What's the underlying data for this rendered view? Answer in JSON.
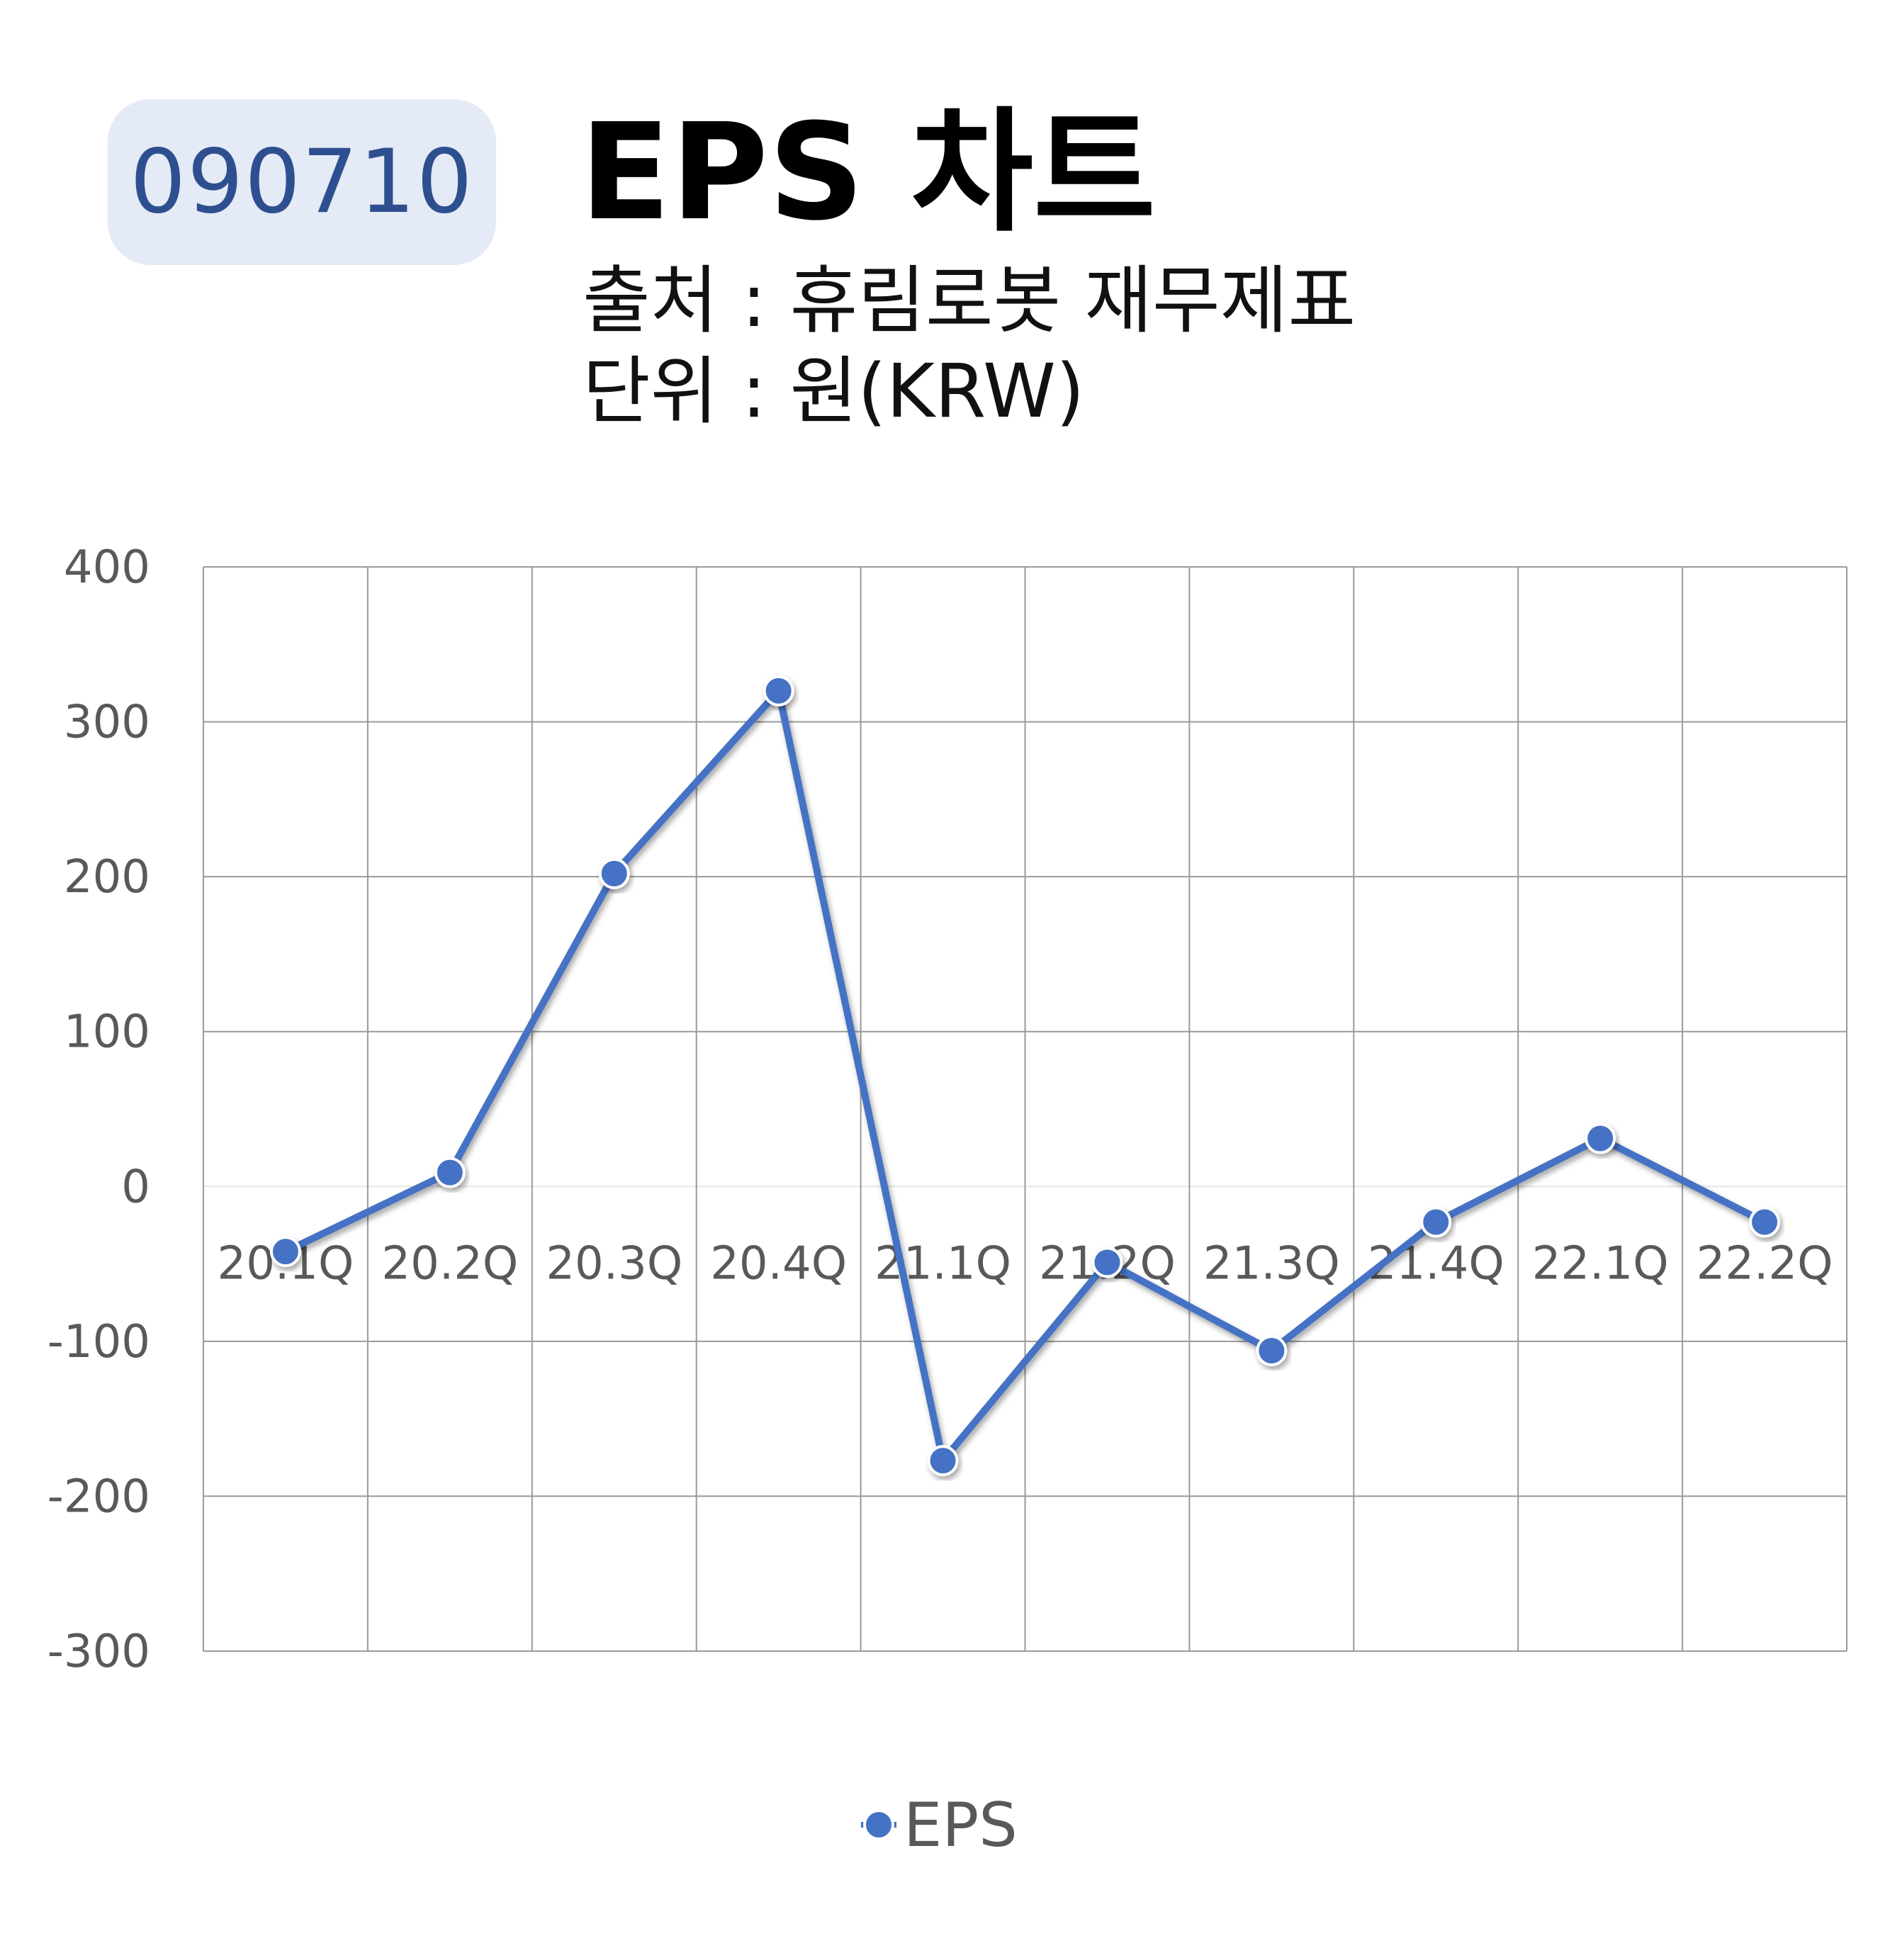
{
  "header": {
    "code": "090710",
    "title": "EPS 차트",
    "source": "출처 : 휴림로봇 재무제표",
    "unit": "단위 : 원(KRW)"
  },
  "chart_data": {
    "type": "line",
    "categories": [
      "20.1Q",
      "20.2Q",
      "20.3Q",
      "20.4Q",
      "21.1Q",
      "21.2Q",
      "21.3Q",
      "21.4Q",
      "22.1Q",
      "22.2Q"
    ],
    "series": [
      {
        "name": "EPS",
        "color": "#4472c4",
        "values": [
          -42,
          9,
          202,
          320,
          -177,
          -49,
          -106,
          -23,
          31,
          -23
        ]
      }
    ],
    "ylim": [
      -300,
      400
    ],
    "yticks": [
      400,
      300,
      200,
      100,
      0,
      -100,
      -200,
      -300
    ],
    "grid": true,
    "legend": "bottom"
  }
}
